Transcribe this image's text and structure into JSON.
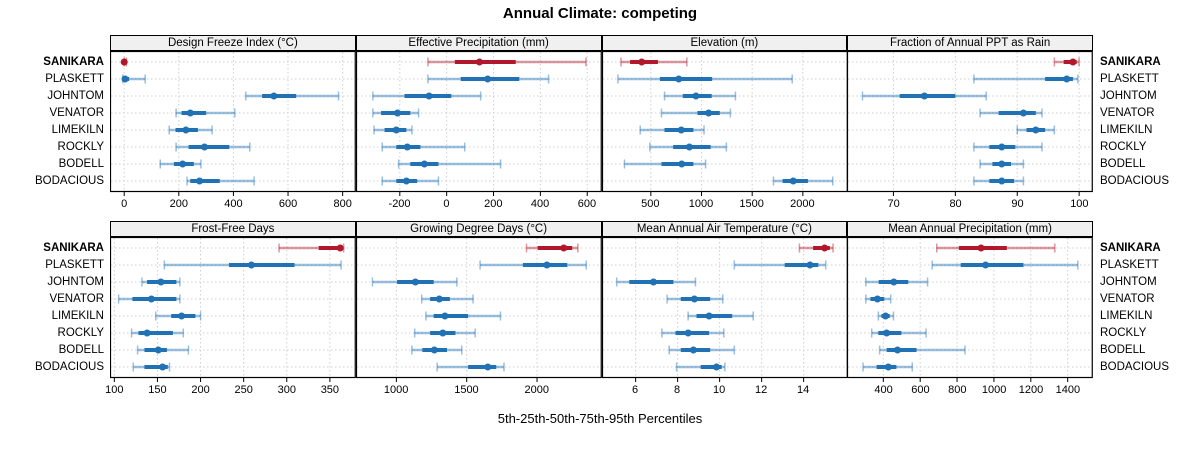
{
  "title": "Annual Climate: competing",
  "axis_title": "5th-25th-50th-75th-95th Percentiles",
  "highlight_site": "SANIKARA",
  "sites": [
    "SANIKARA",
    "PLASKETT",
    "JOHNTOM",
    "VENATOR",
    "LIMEKILN",
    "ROCKLY",
    "BODELL",
    "BODACIOUS"
  ],
  "colors": {
    "highlight_dark": "#b2182b",
    "highlight_light": "rgba(178,24,43,0.45)",
    "series_dark": "#2171b5",
    "series_light": "rgba(33,113,181,0.45)",
    "strip_bg": "#f0f0f0",
    "grid": "#cfcfcf",
    "panel_border": "#000000",
    "background": "#ffffff"
  },
  "chart_data": {
    "type": "dot-whisker-trellis",
    "layout": {
      "rows": 2,
      "cols": 4,
      "grid": "dotted",
      "row_labels_both_sides": true
    },
    "percentiles": [
      "5th",
      "25th",
      "50th",
      "75th",
      "95th"
    ],
    "categories": [
      "SANIKARA",
      "PLASKETT",
      "JOHNTOM",
      "VENATOR",
      "LIMEKILN",
      "ROCKLY",
      "BODELL",
      "BODACIOUS"
    ],
    "panels": [
      {
        "title": "Design Freeze Index (°C)",
        "xlim": [
          -52,
          848
        ],
        "ticks": [
          0,
          200,
          400,
          600,
          800
        ],
        "series": {
          "SANIKARA": [
            0,
            0,
            0,
            2,
            8
          ],
          "PLASKETT": [
            -5,
            0,
            3,
            18,
            77
          ],
          "JOHNTOM": [
            445,
            505,
            548,
            630,
            785
          ],
          "VENATOR": [
            190,
            210,
            242,
            300,
            405
          ],
          "LIMEKILN": [
            165,
            188,
            226,
            270,
            322
          ],
          "ROCKLY": [
            190,
            236,
            294,
            385,
            460
          ],
          "BODELL": [
            132,
            182,
            214,
            255,
            281
          ],
          "BODACIOUS": [
            230,
            242,
            276,
            350,
            476
          ]
        }
      },
      {
        "title": "Effective Precipitation (mm)",
        "xlim": [
          -387,
          662
        ],
        "ticks": [
          -200,
          0,
          200,
          400,
          600
        ],
        "series": {
          "SANIKARA": [
            -80,
            35,
            140,
            295,
            595
          ],
          "PLASKETT": [
            -80,
            60,
            175,
            310,
            435
          ],
          "JOHNTOM": [
            -315,
            -180,
            -75,
            20,
            145
          ],
          "VENATOR": [
            -315,
            -280,
            -210,
            -155,
            -120
          ],
          "LIMEKILN": [
            -310,
            -265,
            -215,
            -172,
            -148
          ],
          "ROCKLY": [
            -275,
            -215,
            -168,
            -112,
            77
          ],
          "BODELL": [
            -205,
            -155,
            -95,
            -35,
            230
          ],
          "BODACIOUS": [
            -275,
            -215,
            -172,
            -126,
            -35
          ]
        }
      },
      {
        "title": "Elevation (m)",
        "xlim": [
          18,
          2443
        ],
        "ticks": [
          500,
          1000,
          1500,
          2000
        ],
        "series": {
          "SANIKARA": [
            205,
            295,
            410,
            570,
            855
          ],
          "PLASKETT": [
            175,
            590,
            775,
            1105,
            1895
          ],
          "JOHNTOM": [
            635,
            815,
            945,
            1100,
            1335
          ],
          "VENATOR": [
            605,
            960,
            1070,
            1180,
            1285
          ],
          "LIMEKILN": [
            395,
            635,
            800,
            920,
            1025
          ],
          "ROCKLY": [
            490,
            720,
            880,
            1090,
            1245
          ],
          "BODELL": [
            240,
            605,
            805,
            920,
            1040
          ],
          "BODACIOUS": [
            1710,
            1800,
            1905,
            2050,
            2295
          ]
        }
      },
      {
        "title": "Fraction of Annual PPT as Rain",
        "xlim": [
          62.5,
          102.2
        ],
        "ticks": [
          70,
          80,
          90,
          100
        ],
        "series": {
          "SANIKARA": [
            96,
            97.5,
            99,
            99.6,
            100
          ],
          "PLASKETT": [
            83,
            94.5,
            98,
            99,
            99.8
          ],
          "JOHNTOM": [
            65,
            71,
            75,
            80,
            85
          ],
          "VENATOR": [
            84,
            87,
            91,
            93,
            94
          ],
          "LIMEKILN": [
            90,
            91.5,
            93,
            94.5,
            96
          ],
          "ROCKLY": [
            83,
            85.5,
            87.5,
            89.7,
            94
          ],
          "BODELL": [
            84,
            86,
            87.5,
            89,
            91
          ],
          "BODACIOUS": [
            83,
            85.5,
            87.5,
            89.5,
            91
          ]
        }
      },
      {
        "title": "Frost-Free Days",
        "xlim": [
          95,
          380
        ],
        "ticks": [
          100,
          150,
          200,
          250,
          300,
          350
        ],
        "series": {
          "SANIKARA": [
            291,
            337,
            362,
            365,
            366
          ],
          "PLASKETT": [
            158,
            233,
            259,
            309,
            363
          ],
          "JOHNTOM": [
            132,
            138,
            154,
            172,
            176
          ],
          "VENATOR": [
            105,
            121,
            143,
            172,
            176
          ],
          "LIMEKILN": [
            148,
            166,
            178,
            194,
            200
          ],
          "ROCKLY": [
            120,
            128,
            138,
            168,
            180
          ],
          "BODELL": [
            127,
            135,
            151,
            161,
            186
          ],
          "BODACIOUS": [
            122,
            135,
            156,
            162,
            164
          ]
        }
      },
      {
        "title": "Growing Degree Days (°C)",
        "xlim": [
          713,
          2460
        ],
        "ticks": [
          1000,
          1500,
          2000
        ],
        "series": {
          "SANIKARA": [
            1925,
            2005,
            2190,
            2250,
            2290
          ],
          "PLASKETT": [
            1595,
            1900,
            2070,
            2215,
            2350
          ],
          "JOHNTOM": [
            830,
            1005,
            1135,
            1265,
            1430
          ],
          "VENATOR": [
            1180,
            1240,
            1305,
            1380,
            1545
          ],
          "LIMEKILN": [
            1210,
            1265,
            1345,
            1510,
            1740
          ],
          "ROCKLY": [
            1130,
            1240,
            1330,
            1420,
            1560
          ],
          "BODELL": [
            1110,
            1185,
            1270,
            1360,
            1465
          ],
          "BODACIOUS": [
            1290,
            1510,
            1650,
            1710,
            1765
          ]
        }
      },
      {
        "title": "Mean Annual Air Temperature (°C)",
        "xlim": [
          4.4,
          16.1
        ],
        "ticks": [
          6,
          8,
          10,
          12,
          14
        ],
        "series": {
          "SANIKARA": [
            13.8,
            14.45,
            15.0,
            15.25,
            15.4
          ],
          "PLASKETT": [
            10.7,
            13.1,
            14.3,
            14.7,
            15.05
          ],
          "JOHNTOM": [
            5.1,
            5.7,
            6.85,
            7.8,
            8.85
          ],
          "VENATOR": [
            7.5,
            8.15,
            8.8,
            9.55,
            10.15
          ],
          "LIMEKILN": [
            8.5,
            8.9,
            9.5,
            10.6,
            11.6
          ],
          "ROCKLY": [
            7.25,
            7.9,
            8.5,
            9.5,
            10.2
          ],
          "BODELL": [
            7.6,
            8.15,
            8.75,
            9.55,
            10.7
          ],
          "BODACIOUS": [
            7.95,
            9.1,
            9.85,
            10.1,
            10.25
          ]
        }
      },
      {
        "title": "Mean Annual Precipitation (mm)",
        "xlim": [
          203,
          1536
        ],
        "ticks": [
          400,
          600,
          800,
          1000,
          1200,
          1400
        ],
        "series": {
          "SANIKARA": [
            690,
            810,
            930,
            1070,
            1330
          ],
          "PLASKETT": [
            665,
            820,
            955,
            1160,
            1455
          ],
          "JOHNTOM": [
            305,
            375,
            457,
            535,
            640
          ],
          "VENATOR": [
            305,
            330,
            368,
            405,
            440
          ],
          "LIMEKILN": [
            373,
            390,
            412,
            435,
            455
          ],
          "ROCKLY": [
            337,
            373,
            418,
            498,
            632
          ],
          "BODELL": [
            380,
            418,
            477,
            580,
            843
          ],
          "BODACIOUS": [
            290,
            364,
            427,
            471,
            557
          ]
        }
      }
    ]
  }
}
